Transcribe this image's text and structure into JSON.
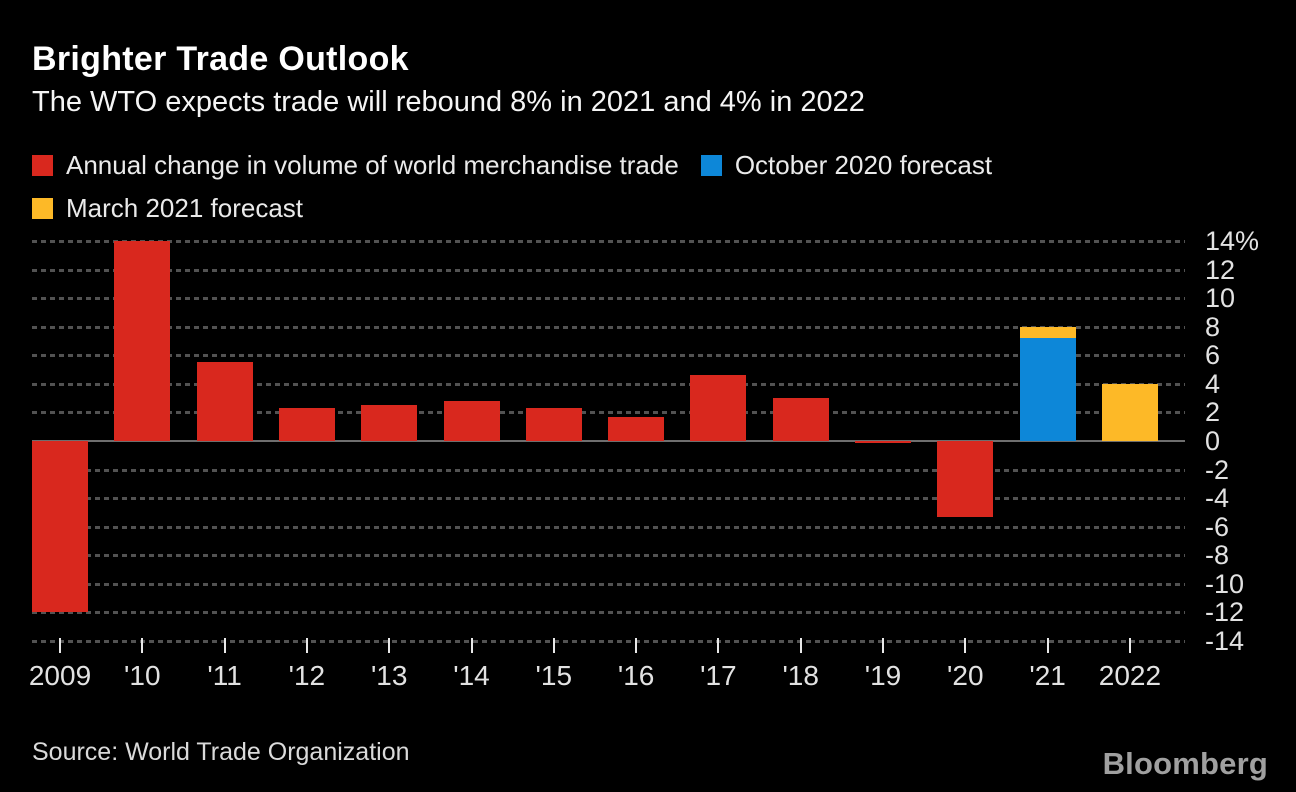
{
  "colors": {
    "background": "#000000",
    "red": "#d9281e",
    "blue": "#0d87d8",
    "yellow": "#fdb927",
    "grid": "#525252",
    "zero_line": "#6e6e6e",
    "text": "#eaeaea"
  },
  "header": {
    "title": "Brighter Trade Outlook",
    "subtitle": "The WTO expects trade will rebound 8% in 2021 and 4% in 2022"
  },
  "legend": {
    "items": [
      {
        "label": "Annual change in volume of world merchandise trade",
        "color": "#d9281e"
      },
      {
        "label": "October 2020 forecast",
        "color": "#0d87d8"
      },
      {
        "label": "March 2021 forecast",
        "color": "#fdb927"
      }
    ]
  },
  "chart_data": {
    "type": "bar",
    "title": "Brighter Trade Outlook",
    "subtitle": "The WTO expects trade will rebound 8% in 2021 and 4% in 2022",
    "categories": [
      "2009",
      "'10",
      "'11",
      "'12",
      "'13",
      "'14",
      "'15",
      "'16",
      "'17",
      "'18",
      "'19",
      "'20",
      "'21",
      "2022"
    ],
    "series": [
      {
        "name": "Annual change in volume of world merchandise trade",
        "color": "#d9281e",
        "values": [
          -12,
          14,
          5.5,
          2.3,
          2.5,
          2.8,
          2.3,
          1.7,
          4.6,
          3.0,
          -0.1,
          -5.3,
          null,
          null
        ]
      },
      {
        "name": "October 2020 forecast",
        "color": "#0d87d8",
        "values": [
          null,
          null,
          null,
          null,
          null,
          null,
          null,
          null,
          null,
          null,
          null,
          null,
          7.2,
          null
        ]
      },
      {
        "name": "March 2021 forecast",
        "color": "#fdb927",
        "stacked_on": "October 2020 forecast",
        "values": [
          null,
          null,
          null,
          null,
          null,
          null,
          null,
          null,
          null,
          null,
          null,
          null,
          8.0,
          4.0
        ]
      }
    ],
    "xlabel": "",
    "ylabel": "",
    "ylim": [
      -14,
      14
    ],
    "y_ticks": [
      {
        "value": 14,
        "label": "14%"
      },
      {
        "value": 12,
        "label": "12"
      },
      {
        "value": 10,
        "label": "10"
      },
      {
        "value": 8,
        "label": "8"
      },
      {
        "value": 6,
        "label": "6"
      },
      {
        "value": 4,
        "label": "4"
      },
      {
        "value": 2,
        "label": "2"
      },
      {
        "value": 0,
        "label": "0"
      },
      {
        "value": -2,
        "label": "-2"
      },
      {
        "value": -4,
        "label": "-4"
      },
      {
        "value": -6,
        "label": "-6"
      },
      {
        "value": -8,
        "label": "-8"
      },
      {
        "value": -10,
        "label": "-10"
      },
      {
        "value": -12,
        "label": "-12"
      },
      {
        "value": -14,
        "label": "-14"
      }
    ],
    "grid": "dotted horizontal gridlines, y-axis labels on right, zero baseline solid",
    "legend_position": "top-left"
  },
  "footer": {
    "source": "Source: World Trade Organization",
    "brand": "Bloomberg"
  }
}
